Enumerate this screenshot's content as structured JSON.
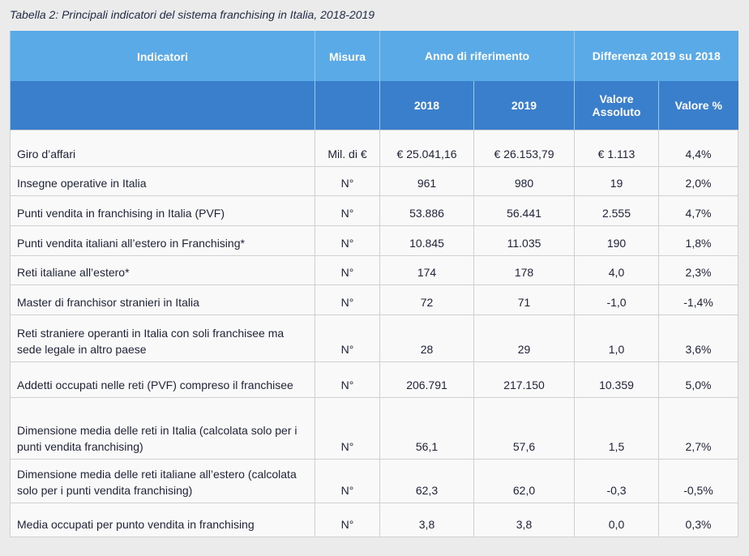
{
  "header": {
    "title": "Tabella 2: Principali indicatori del sistema franchising in Italia, 2018-2019"
  },
  "table": {
    "header_top": [
      "Indicatori",
      "Misura",
      "Anno di riferimento",
      "Differenza 2019 su 2018"
    ],
    "header_sub": [
      "2018",
      "2019",
      "Valore Assoluto",
      "Valore %"
    ],
    "rows": [
      [
        "Giro d’affari",
        "Mil. di €",
        "€ 25.041,16",
        "€ 26.153,79",
        "€ 1.113",
        "4,4%"
      ],
      [
        "Insegne operative in Italia",
        "N°",
        "961",
        "980",
        "19",
        "2,0%"
      ],
      [
        "Punti vendita in franchising in Italia (PVF)",
        "N°",
        "53.886",
        "56.441",
        "2.555",
        "4,7%"
      ],
      [
        "Punti vendita italiani all’estero in Franchising*",
        "N°",
        "10.845",
        "11.035",
        "190",
        "1,8%"
      ],
      [
        "Reti italiane all’estero*",
        "N°",
        "174",
        "178",
        "4,0",
        "2,3%"
      ],
      [
        "Master di franchisor stranieri in Italia",
        "N°",
        "72",
        "71",
        "-1,0",
        "-1,4%"
      ],
      [
        "Reti straniere operanti in Italia con soli franchisee ma sede legale in altro paese",
        "N°",
        "28",
        "29",
        "1,0",
        "3,6%"
      ],
      [
        "Addetti occupati nelle reti (PVF) compreso il franchisee",
        "N°",
        "206.791",
        "217.150",
        "10.359",
        "5,0%"
      ],
      [
        "Dimensione media delle reti in Italia (calcolata solo per i punti vendita franchising)",
        "N°",
        "56,1",
        "57,6",
        "1,5",
        "2,7%"
      ],
      [
        "Dimensione media delle reti italiane all’estero (calcolata solo per i punti vendita franchising)",
        "N°",
        "62,3",
        "62,0",
        "-0,3",
        "-0,5%"
      ],
      [
        "Media occupati per punto vendita in franchising",
        "N°",
        "3,8",
        "3,8",
        "0,0",
        "0,3%"
      ]
    ]
  }
}
